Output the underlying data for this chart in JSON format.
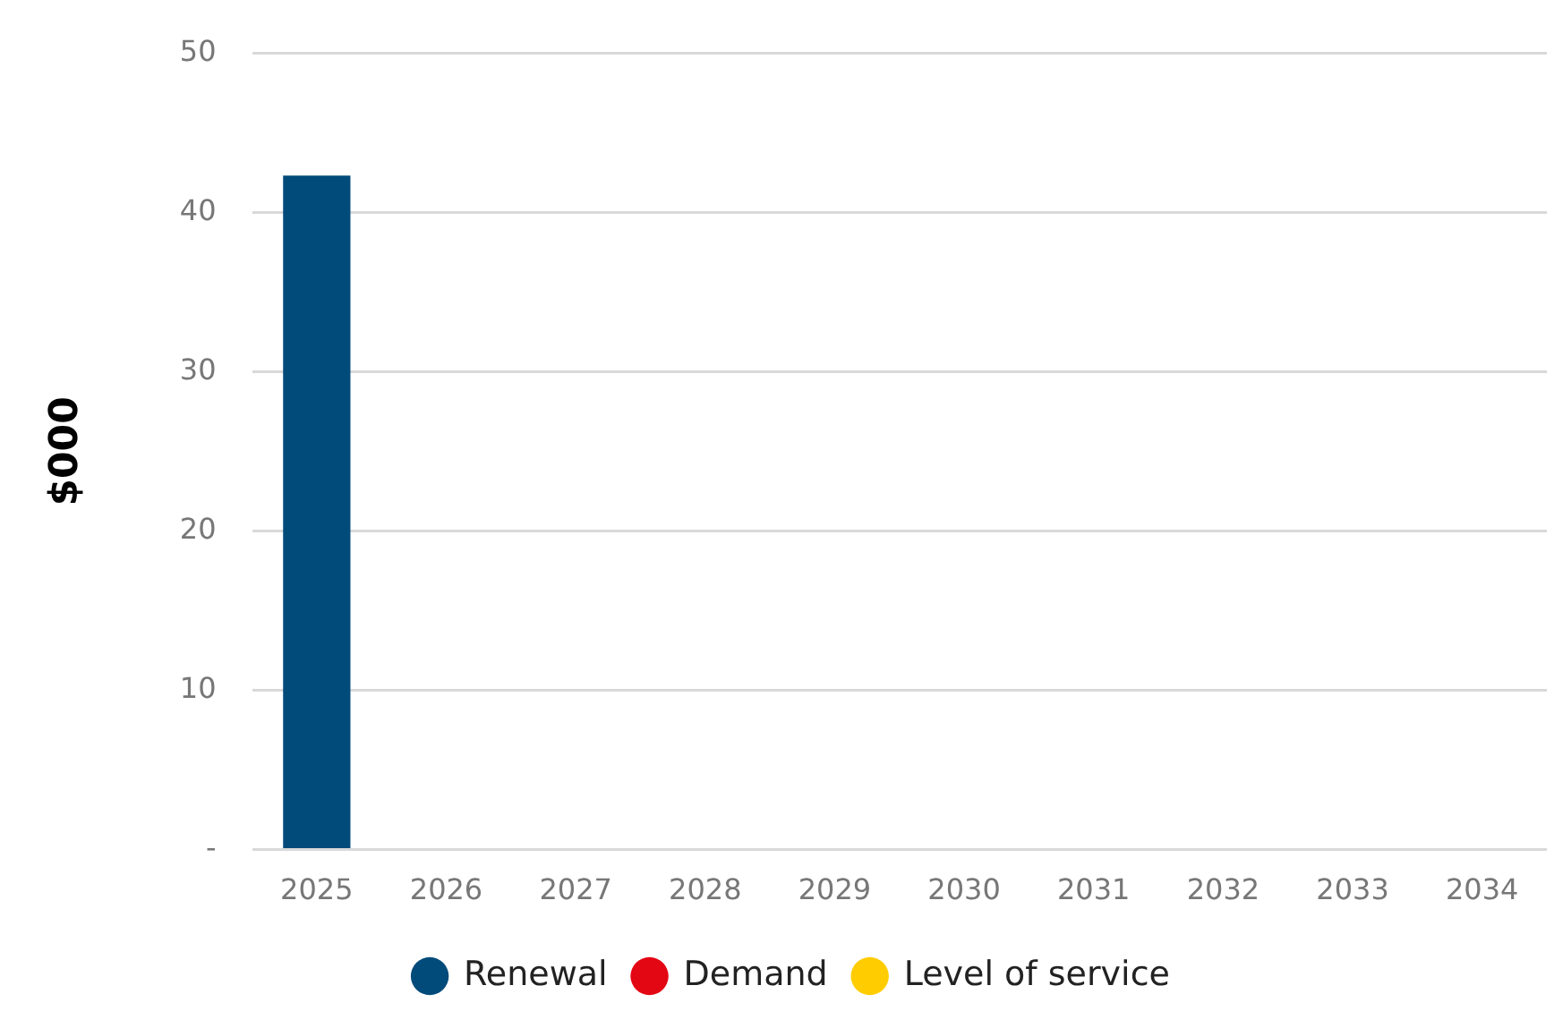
{
  "chart_data": {
    "type": "bar",
    "stacked": true,
    "ylabel": "$000",
    "categories": [
      "2025",
      "2026",
      "2027",
      "2028",
      "2029",
      "2030",
      "2031",
      "2032",
      "2033",
      "2034"
    ],
    "series": [
      {
        "name": "Renewal",
        "color": "#004b7a",
        "values": [
          42.3,
          0,
          0,
          0,
          0,
          0,
          0,
          0,
          0,
          0
        ]
      },
      {
        "name": "Demand",
        "color": "#e30613",
        "values": [
          0,
          0,
          0,
          0,
          0,
          0,
          0,
          0,
          0,
          0
        ]
      },
      {
        "name": "Level of service",
        "color": "#ffcc00",
        "values": [
          0,
          0,
          0,
          0,
          0,
          0,
          0,
          0,
          0,
          0
        ]
      }
    ],
    "ylim": [
      0,
      50
    ],
    "yticks": [
      {
        "value": 0,
        "label": "-"
      },
      10,
      20,
      30,
      40,
      50
    ],
    "grid": "y",
    "legend": "bottom"
  }
}
